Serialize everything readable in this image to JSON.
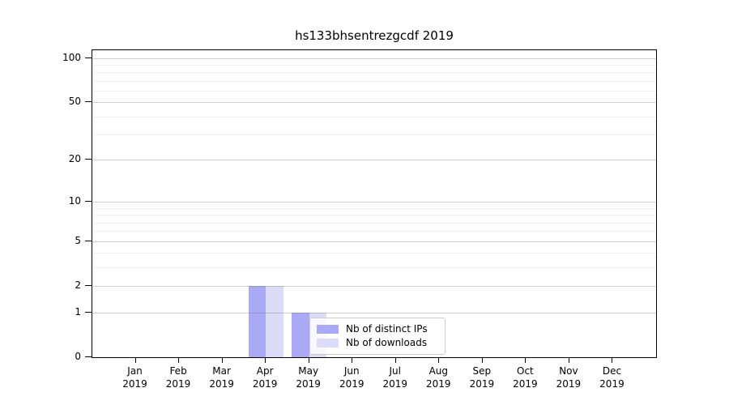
{
  "chart_data": {
    "type": "bar",
    "title": "hs133bhsentrezgcdf 2019",
    "categories": [
      "Jan",
      "Feb",
      "Mar",
      "Apr",
      "May",
      "Jun",
      "Jul",
      "Aug",
      "Sep",
      "Oct",
      "Nov",
      "Dec"
    ],
    "xtick_year": "2019",
    "series": [
      {
        "name": "Nb of distinct IPs",
        "color": "#a9a9f5",
        "values": [
          0,
          0,
          0,
          2,
          1,
          0,
          0,
          0,
          0,
          0,
          0,
          0
        ]
      },
      {
        "name": "Nb of downloads",
        "color": "#dcdcf9",
        "values": [
          0,
          0,
          0,
          2,
          1,
          0,
          0,
          0,
          0,
          0,
          0,
          0
        ]
      }
    ],
    "yscale": "log1p",
    "yticks": [
      0,
      1,
      2,
      5,
      10,
      20,
      50,
      100
    ],
    "minor_yticks": [
      3,
      4,
      6,
      7,
      8,
      9,
      30,
      40,
      60,
      70,
      80,
      90
    ],
    "ylim": [
      0,
      113
    ],
    "xlabel": "",
    "ylabel": "",
    "grid": "on",
    "legend_position": "inside-lower-center"
  },
  "colors": {
    "axis": "#000000",
    "background": "#ffffff",
    "grid_major": "rgba(110,110,110,0.32)",
    "grid_minor": "rgba(150,150,150,0.14)",
    "legend_bg": "rgba(255,255,255,0.8)",
    "legend_border": "#cccccc"
  }
}
